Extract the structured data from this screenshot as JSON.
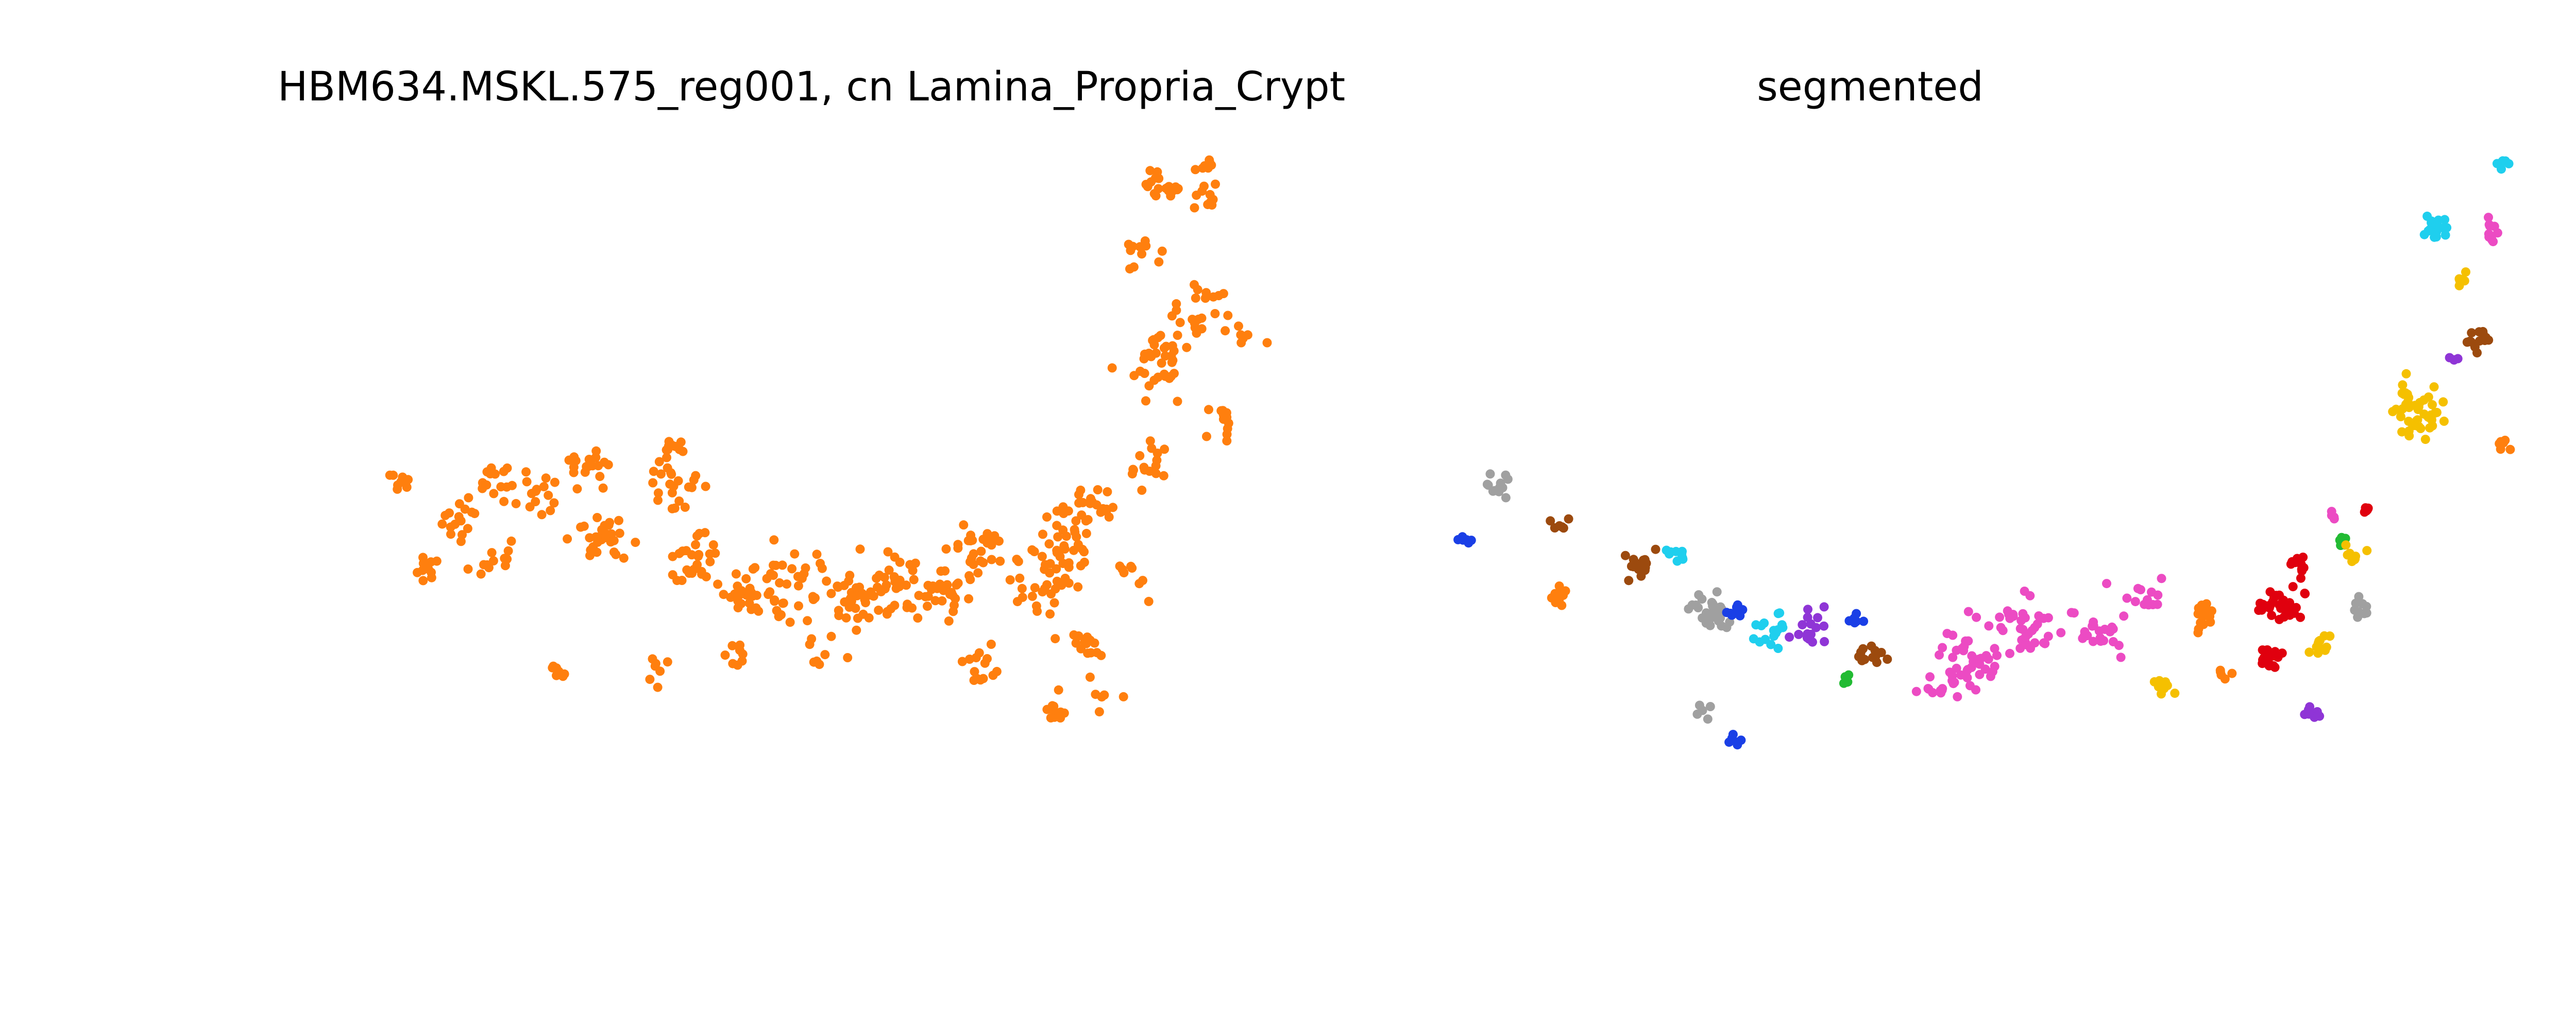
{
  "chart_data": [
    {
      "type": "scatter",
      "title": "HBM634.MSKL.575_reg001, cn Lamina_Propria_Crypt",
      "xlabel": "",
      "ylabel": "",
      "axes_visible": false,
      "grid": false,
      "legend": "none",
      "xlim": [
        0,
        1000
      ],
      "ylim": [
        0,
        600
      ],
      "series": [
        {
          "color": "#ff7f0e",
          "clusters": [
            {
              "cx": 30,
              "cy": 253,
              "n": 10,
              "spread": 9,
              "seed": 11
            },
            {
              "cx": 56,
              "cy": 318,
              "n": 10,
              "spread": 11,
              "seed": 12
            },
            {
              "cx": 77,
              "cy": 283,
              "n": 16,
              "spread": 14,
              "seed": 13
            },
            {
              "cx": 108,
              "cy": 255,
              "n": 14,
              "spread": 14,
              "seed": 14
            },
            {
              "cx": 108,
              "cy": 318,
              "n": 12,
              "spread": 13,
              "seed": 15
            },
            {
              "cx": 138,
              "cy": 262,
              "n": 16,
              "spread": 16,
              "seed": 16
            },
            {
              "cx": 178,
              "cy": 245,
              "n": 18,
              "spread": 15,
              "seed": 17
            },
            {
              "cx": 185,
              "cy": 295,
              "n": 28,
              "spread": 18,
              "seed": 18
            },
            {
              "cx": 240,
              "cy": 263,
              "n": 22,
              "spread": 17,
              "seed": 19
            },
            {
              "cx": 242,
              "cy": 228,
              "n": 10,
              "spread": 8,
              "seed": 20
            },
            {
              "cx": 260,
              "cy": 312,
              "n": 26,
              "spread": 18,
              "seed": 21
            },
            {
              "cx": 295,
              "cy": 340,
              "n": 22,
              "spread": 16,
              "seed": 22
            },
            {
              "cx": 335,
              "cy": 333,
              "n": 34,
              "spread": 22,
              "seed": 23
            },
            {
              "cx": 380,
              "cy": 340,
              "n": 40,
              "spread": 24,
              "seed": 24
            },
            {
              "cx": 420,
              "cy": 330,
              "n": 28,
              "spread": 18,
              "seed": 25
            },
            {
              "cx": 455,
              "cy": 345,
              "n": 24,
              "spread": 18,
              "seed": 26
            },
            {
              "cx": 475,
              "cy": 310,
              "n": 30,
              "spread": 22,
              "seed": 27
            },
            {
              "cx": 535,
              "cy": 335,
              "n": 30,
              "spread": 22,
              "seed": 28
            },
            {
              "cx": 545,
              "cy": 295,
              "n": 32,
              "spread": 22,
              "seed": 29
            },
            {
              "cx": 570,
              "cy": 272,
              "n": 16,
              "spread": 14,
              "seed": 30
            },
            {
              "cx": 610,
              "cy": 240,
              "n": 16,
              "spread": 16,
              "seed": 31
            },
            {
              "cx": 620,
              "cy": 166,
              "n": 34,
              "spread": 22,
              "seed": 32
            },
            {
              "cx": 650,
              "cy": 120,
              "n": 24,
              "spread": 18,
              "seed": 33
            },
            {
              "cx": 605,
              "cy": 75,
              "n": 12,
              "spread": 12,
              "seed": 34
            },
            {
              "cx": 627,
              "cy": 28,
              "n": 14,
              "spread": 10,
              "seed": 35
            },
            {
              "cx": 657,
              "cy": 34,
              "n": 10,
              "spread": 10,
              "seed": 36
            },
            {
              "cx": 615,
              "cy": 18,
              "n": 8,
              "spread": 6,
              "seed": 37
            },
            {
              "cx": 655,
              "cy": 8,
              "n": 8,
              "spread": 8,
              "seed": 38
            },
            {
              "cx": 667,
              "cy": 210,
              "n": 12,
              "spread": 14,
              "seed": 39
            },
            {
              "cx": 560,
              "cy": 378,
              "n": 14,
              "spread": 14,
              "seed": 40
            },
            {
              "cx": 480,
              "cy": 400,
              "n": 14,
              "spread": 14,
              "seed": 41
            },
            {
              "cx": 535,
              "cy": 432,
              "n": 10,
              "spread": 10,
              "seed": 42
            },
            {
              "cx": 150,
              "cy": 402,
              "n": 7,
              "spread": 9,
              "seed": 43
            },
            {
              "cx": 230,
              "cy": 398,
              "n": 7,
              "spread": 11,
              "seed": 44
            },
            {
              "cx": 290,
              "cy": 392,
              "n": 8,
              "spread": 11,
              "seed": 45
            },
            {
              "cx": 360,
              "cy": 388,
              "n": 8,
              "spread": 12,
              "seed": 46
            },
            {
              "cx": 575,
              "cy": 423,
              "n": 6,
              "spread": 9,
              "seed": 47
            },
            {
              "cx": 690,
              "cy": 145,
              "n": 6,
              "spread": 10,
              "seed": 48
            },
            {
              "cx": 600,
              "cy": 330,
              "n": 8,
              "spread": 12,
              "seed": 49
            }
          ]
        }
      ]
    },
    {
      "type": "scatter",
      "title": "segmented",
      "xlabel": "",
      "ylabel": "",
      "axes_visible": false,
      "grid": false,
      "legend": "none",
      "xlim": [
        0,
        1000
      ],
      "ylim": [
        0,
        600
      ],
      "series": [
        {
          "color": "#a0a0a0",
          "clusters": [
            {
              "cx": 25,
              "cy": 240,
              "n": 12,
              "spread": 7,
              "seed": 101
            },
            {
              "cx": 185,
              "cy": 335,
              "n": 28,
              "spread": 12,
              "seed": 102
            },
            {
              "cx": 180,
              "cy": 408,
              "n": 5,
              "spread": 5,
              "seed": 103
            },
            {
              "cx": 670,
              "cy": 332,
              "n": 10,
              "spread": 6,
              "seed": 104
            }
          ]
        },
        {
          "color": "#1a3fe6",
          "clusters": [
            {
              "cx": 2,
              "cy": 280,
              "n": 8,
              "spread": 4,
              "seed": 111
            },
            {
              "cx": 205,
              "cy": 335,
              "n": 8,
              "spread": 5,
              "seed": 112
            },
            {
              "cx": 292,
              "cy": 338,
              "n": 6,
              "spread": 4,
              "seed": 113
            },
            {
              "cx": 202,
              "cy": 430,
              "n": 6,
              "spread": 5,
              "seed": 114
            }
          ]
        },
        {
          "color": "#9c4a0e",
          "clusters": [
            {
              "cx": 72,
              "cy": 268,
              "n": 6,
              "spread": 5,
              "seed": 121
            },
            {
              "cx": 132,
              "cy": 297,
              "n": 16,
              "spread": 9,
              "seed": 122
            },
            {
              "cx": 305,
              "cy": 365,
              "n": 14,
              "spread": 9,
              "seed": 123
            },
            {
              "cx": 760,
              "cy": 132,
              "n": 14,
              "spread": 9,
              "seed": 124
            }
          ]
        },
        {
          "color": "#ff7f0e",
          "clusters": [
            {
              "cx": 70,
              "cy": 325,
              "n": 10,
              "spread": 7,
              "seed": 131
            },
            {
              "cx": 555,
              "cy": 338,
              "n": 14,
              "spread": 10,
              "seed": 132
            },
            {
              "cx": 568,
              "cy": 382,
              "n": 5,
              "spread": 4,
              "seed": 133
            },
            {
              "cx": 777,
              "cy": 210,
              "n": 6,
              "spread": 4,
              "seed": 134
            }
          ]
        },
        {
          "color": "#1fcfee",
          "clusters": [
            {
              "cx": 158,
              "cy": 290,
              "n": 10,
              "spread": 7,
              "seed": 141
            },
            {
              "cx": 230,
              "cy": 348,
              "n": 16,
              "spread": 10,
              "seed": 142
            },
            {
              "cx": 725,
              "cy": 50,
              "n": 18,
              "spread": 9,
              "seed": 143
            },
            {
              "cx": 777,
              "cy": 0,
              "n": 6,
              "spread": 4,
              "seed": 144
            }
          ]
        },
        {
          "color": "#8f35d6",
          "clusters": [
            {
              "cx": 260,
              "cy": 345,
              "n": 16,
              "spread": 10,
              "seed": 151
            },
            {
              "cx": 740,
              "cy": 145,
              "n": 4,
              "spread": 3,
              "seed": 152
            },
            {
              "cx": 635,
              "cy": 410,
              "n": 8,
              "spread": 5,
              "seed": 153
            }
          ]
        },
        {
          "color": "#22bb33",
          "clusters": [
            {
              "cx": 285,
              "cy": 385,
              "n": 7,
              "spread": 4,
              "seed": 161
            },
            {
              "cx": 655,
              "cy": 280,
              "n": 8,
              "spread": 4,
              "seed": 162
            }
          ]
        },
        {
          "color": "#ec4bc3",
          "clusters": [
            {
              "cx": 375,
              "cy": 370,
              "n": 40,
              "spread": 20,
              "seed": 171
            },
            {
              "cx": 420,
              "cy": 345,
              "n": 36,
              "spread": 20,
              "seed": 172
            },
            {
              "cx": 475,
              "cy": 345,
              "n": 24,
              "spread": 16,
              "seed": 173
            },
            {
              "cx": 510,
              "cy": 320,
              "n": 12,
              "spread": 10,
              "seed": 174
            },
            {
              "cx": 352,
              "cy": 390,
              "n": 10,
              "spread": 8,
              "seed": 175
            },
            {
              "cx": 650,
              "cy": 262,
              "n": 4,
              "spread": 3,
              "seed": 176
            },
            {
              "cx": 768,
              "cy": 50,
              "n": 10,
              "spread": 5,
              "seed": 177
            }
          ]
        },
        {
          "color": "#e0000e",
          "clusters": [
            {
              "cx": 608,
              "cy": 330,
              "n": 36,
              "spread": 12,
              "seed": 181
            },
            {
              "cx": 600,
              "cy": 370,
              "n": 18,
              "spread": 9,
              "seed": 182
            },
            {
              "cx": 623,
              "cy": 300,
              "n": 10,
              "spread": 6,
              "seed": 183
            },
            {
              "cx": 672,
              "cy": 258,
              "n": 6,
              "spread": 4,
              "seed": 184
            }
          ]
        },
        {
          "color": "#f5c000",
          "clusters": [
            {
              "cx": 713,
              "cy": 183,
              "n": 44,
              "spread": 16,
              "seed": 191
            },
            {
              "cx": 747,
              "cy": 85,
              "n": 6,
              "spread": 4,
              "seed": 192
            },
            {
              "cx": 665,
              "cy": 292,
              "n": 10,
              "spread": 6,
              "seed": 193
            },
            {
              "cx": 640,
              "cy": 358,
              "n": 12,
              "spread": 7,
              "seed": 194
            },
            {
              "cx": 525,
              "cy": 390,
              "n": 10,
              "spread": 7,
              "seed": 195
            }
          ]
        }
      ]
    }
  ]
}
